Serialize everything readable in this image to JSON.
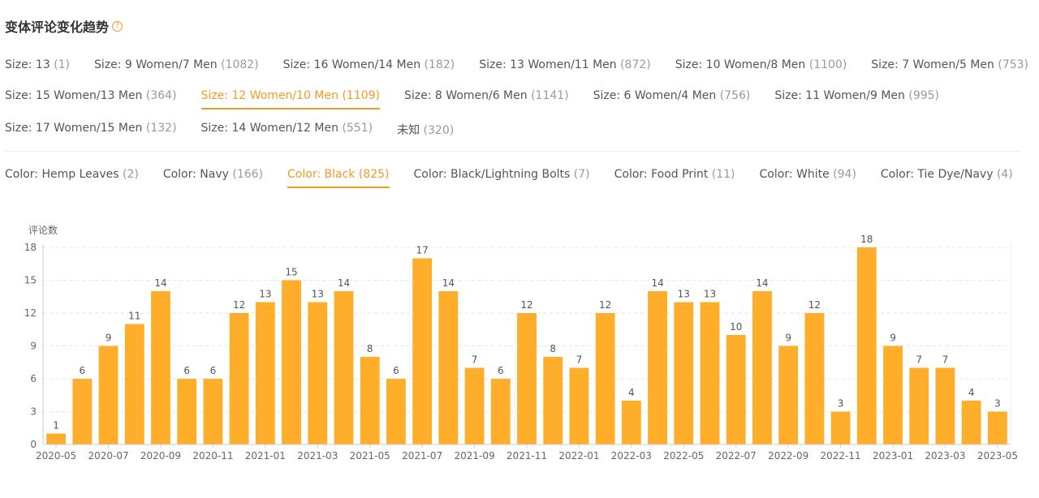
{
  "header": {
    "title": "变体评论变化趋势",
    "help_icon": "question-circle-icon",
    "accent_color": "#f59a23"
  },
  "size_tabs": {
    "rows": [
      [
        {
          "label": "Size: 13",
          "count": "(1)"
        },
        {
          "label": "Size: 9 Women/7 Men",
          "count": "(1082)"
        },
        {
          "label": "Size: 16 Women/14 Men",
          "count": "(182)"
        },
        {
          "label": "Size: 13 Women/11 Men",
          "count": "(872)"
        },
        {
          "label": "Size: 10 Women/8 Men",
          "count": "(1100)"
        },
        {
          "label": "Size: 7 Women/5 Men",
          "count": "(753)"
        }
      ],
      [
        {
          "label": "Size: 15 Women/13 Men",
          "count": "(364)"
        },
        {
          "label": "Size: 12 Women/10 Men",
          "count": "(1109)",
          "active": true
        },
        {
          "label": "Size: 8 Women/6 Men",
          "count": "(1141)"
        },
        {
          "label": "Size: 6 Women/4 Men",
          "count": "(756)"
        },
        {
          "label": "Size: 11 Women/9 Men",
          "count": "(995)"
        }
      ],
      [
        {
          "label": "Size: 17 Women/15 Men",
          "count": "(132)"
        },
        {
          "label": "Size: 14 Women/12 Men",
          "count": "(551)"
        },
        {
          "label": "未知",
          "count": "(320)"
        }
      ]
    ]
  },
  "color_tabs": [
    {
      "label": "Color: Hemp Leaves",
      "count": "(2)"
    },
    {
      "label": "Color: Navy",
      "count": "(166)"
    },
    {
      "label": "Color: Black",
      "count": "(825)",
      "active": true
    },
    {
      "label": "Color: Black/Lightning Bolts",
      "count": "(7)"
    },
    {
      "label": "Color: Food Print",
      "count": "(11)"
    },
    {
      "label": "Color: White",
      "count": "(94)"
    },
    {
      "label": "Color: Tie Dye/Navy",
      "count": "(4)"
    }
  ],
  "chart_data": {
    "type": "bar",
    "ylabel": "评论数",
    "ylim": [
      0,
      18
    ],
    "yticks": [
      0,
      3,
      6,
      9,
      12,
      15,
      18
    ],
    "grid": true,
    "bar_color": "#ffae2c",
    "categories": [
      "2020-05",
      "2020-06",
      "2020-07",
      "2020-08",
      "2020-09",
      "2020-10",
      "2020-11",
      "2020-12",
      "2021-01",
      "2021-02",
      "2021-03",
      "2021-04",
      "2021-05",
      "2021-06",
      "2021-07",
      "2021-08",
      "2021-09",
      "2021-10",
      "2021-11",
      "2021-12",
      "2022-01",
      "2022-02",
      "2022-03",
      "2022-04",
      "2022-05",
      "2022-06",
      "2022-07",
      "2022-08",
      "2022-09",
      "2022-10",
      "2022-11",
      "2022-12",
      "2023-01",
      "2023-02",
      "2023-03",
      "2023-04",
      "2023-05"
    ],
    "x_tick_labels": [
      "2020-05",
      "2020-07",
      "2020-09",
      "2020-11",
      "2021-01",
      "2021-03",
      "2021-05",
      "2021-07",
      "2021-09",
      "2021-11",
      "2022-01",
      "2022-03",
      "2022-05",
      "2022-07",
      "2022-09",
      "2022-11",
      "2023-01",
      "2023-03",
      "2023-05"
    ],
    "values": [
      1,
      6,
      9,
      11,
      14,
      6,
      6,
      12,
      13,
      15,
      13,
      14,
      8,
      6,
      17,
      14,
      7,
      6,
      12,
      8,
      7,
      12,
      4,
      14,
      13,
      13,
      10,
      14,
      9,
      12,
      3,
      18,
      9,
      7,
      7,
      4,
      3
    ]
  }
}
